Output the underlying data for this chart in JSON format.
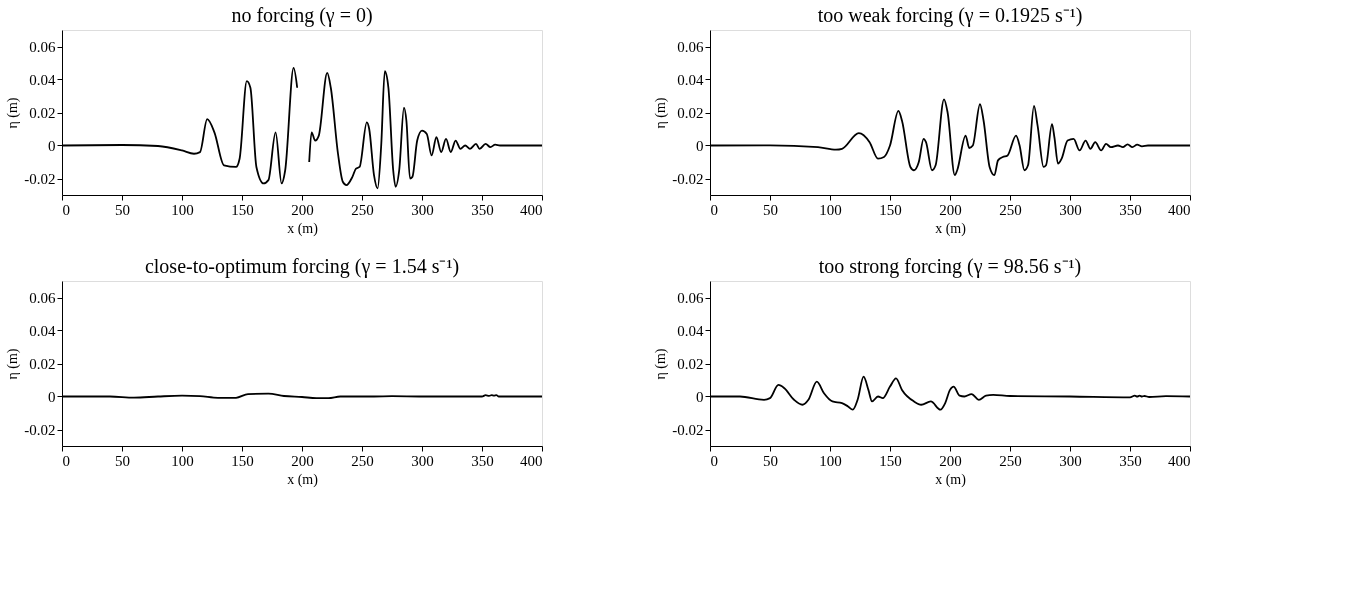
{
  "chart_data": [
    {
      "type": "line",
      "title": "no forcing (γ = 0)",
      "xlabel": "x (m)",
      "ylabel": "η (m)",
      "xlim": [
        0,
        400
      ],
      "xticks": [
        0,
        50,
        100,
        150,
        200,
        250,
        300,
        350,
        400
      ],
      "ylim": [
        -0.03,
        0.07
      ],
      "yticks": [
        -0.02,
        0,
        0.02,
        0.04,
        0.06
      ],
      "grid": false,
      "legend": false,
      "x": [
        0,
        50,
        80,
        100,
        110,
        115,
        121,
        127,
        135,
        145,
        148,
        154,
        157,
        162,
        168,
        172,
        178,
        183,
        186,
        193,
        196,
        201,
        202,
        206,
        208,
        211,
        214,
        221,
        224,
        230,
        234,
        237,
        242,
        245,
        248,
        254,
        256,
        260,
        263,
        266,
        269,
        272,
        276,
        278,
        281,
        285,
        287,
        290,
        292,
        296,
        300,
        304,
        308,
        312,
        316,
        320,
        324,
        328,
        332,
        336,
        340,
        345,
        348,
        353,
        357,
        361,
        365,
        400
      ],
      "series": [
        {
          "color": "#000000",
          "values": [
            0,
            0.0003,
            -0.0003,
            -0.003,
            -0.005,
            -0.004,
            0.016,
            0.008,
            -0.012,
            -0.013,
            -0.008,
            0.039,
            0.035,
            -0.013,
            -0.023,
            -0.021,
            0.008,
            -0.023,
            -0.015,
            0.047,
            0.035,
            null,
            null,
            -0.01,
            0.008,
            0.003,
            0.006,
            0.044,
            0.035,
            -0.005,
            -0.022,
            -0.024,
            -0.019,
            -0.014,
            -0.013,
            0.014,
            0.01,
            -0.018,
            -0.026,
            0,
            0.045,
            0.035,
            -0.015,
            -0.025,
            -0.015,
            0.023,
            0.015,
            -0.02,
            -0.019,
            0.003,
            0.009,
            0.007,
            -0.006,
            0.005,
            -0.004,
            0.004,
            -0.004,
            0.003,
            -0.002,
            0,
            -0.002,
            0.001,
            -0.002,
            0.001,
            -0.001,
            0.0005,
            0,
            0
          ]
        }
      ]
    },
    {
      "type": "line",
      "title": "too weak forcing (γ = 0.1925 s⁻¹)",
      "xlabel": "x (m)",
      "ylabel": "η (m)",
      "xlim": [
        0,
        400
      ],
      "xticks": [
        0,
        50,
        100,
        150,
        200,
        250,
        300,
        350,
        400
      ],
      "ylim": [
        -0.03,
        0.07
      ],
      "yticks": [
        -0.02,
        0,
        0.02,
        0.04,
        0.06
      ],
      "grid": false,
      "legend": false,
      "x": [
        0,
        50,
        90,
        105,
        110,
        124,
        133,
        140,
        145,
        150,
        157,
        160,
        167,
        170,
        174,
        178,
        180,
        185,
        188,
        195,
        198,
        204,
        206,
        213,
        216,
        219,
        225,
        228,
        233,
        237,
        240,
        244,
        248,
        255,
        258,
        262,
        265,
        270,
        273,
        278,
        280,
        285,
        287,
        290,
        293,
        298,
        303,
        308,
        313,
        317,
        321,
        326,
        330,
        334,
        340,
        344,
        348,
        352,
        356,
        360,
        365,
        400
      ],
      "series": [
        {
          "color": "#000000",
          "values": [
            0,
            0.0001,
            -0.001,
            -0.0025,
            -0.002,
            0.0075,
            0.002,
            -0.008,
            -0.007,
            0,
            0.021,
            0.015,
            -0.013,
            -0.015,
            -0.01,
            0.004,
            0.002,
            -0.015,
            -0.012,
            0.028,
            0.02,
            -0.018,
            -0.015,
            0.006,
            -0.0015,
            0,
            0.025,
            0.015,
            -0.013,
            -0.018,
            -0.009,
            -0.007,
            -0.006,
            0.006,
            0,
            -0.015,
            -0.012,
            0.024,
            0.012,
            -0.013,
            -0.012,
            0.013,
            0.005,
            -0.011,
            -0.008,
            0.003,
            0.004,
            -0.003,
            0.003,
            -0.002,
            0.002,
            -0.003,
            0.001,
            -0.001,
            0,
            -0.001,
            0.0007,
            -0.001,
            0.0005,
            -0.0005,
            0,
            0
          ]
        }
      ]
    },
    {
      "type": "line",
      "title": "close-to-optimum forcing (γ = 1.54 s⁻¹)",
      "xlabel": "x (m)",
      "ylabel": "η (m)",
      "xlim": [
        0,
        400
      ],
      "xticks": [
        0,
        50,
        100,
        150,
        200,
        250,
        300,
        350,
        400
      ],
      "ylim": [
        -0.03,
        0.07
      ],
      "yticks": [
        -0.02,
        0,
        0.02,
        0.04,
        0.06
      ],
      "grid": false,
      "legend": false,
      "x": [
        0,
        40,
        60,
        80,
        100,
        115,
        130,
        145,
        155,
        172,
        185,
        200,
        212,
        222,
        232,
        260,
        275,
        300,
        350,
        353,
        356,
        358,
        360,
        362,
        364,
        400
      ],
      "series": [
        {
          "color": "#000000",
          "values": [
            0,
            0,
            -0.0007,
            0,
            0.0005,
            0.0002,
            -0.0008,
            -0.0008,
            0.0015,
            0.0017,
            0.0003,
            -0.0003,
            -0.001,
            -0.001,
            0,
            0,
            0.0002,
            0,
            0,
            0.0008,
            0.0004,
            0.0008,
            0.0005,
            0.0008,
            0,
            0
          ]
        }
      ]
    },
    {
      "type": "line",
      "title": "too strong forcing (γ = 98.56 s⁻¹)",
      "xlabel": "x (m)",
      "ylabel": "η (m)",
      "xlim": [
        0,
        400
      ],
      "xticks": [
        0,
        50,
        100,
        150,
        200,
        250,
        300,
        350,
        400
      ],
      "ylim": [
        -0.03,
        0.07
      ],
      "yticks": [
        -0.02,
        0,
        0.02,
        0.04,
        0.06
      ],
      "grid": false,
      "legend": false,
      "x": [
        0,
        25,
        45,
        50,
        57,
        62,
        70,
        77,
        82,
        89,
        95,
        102,
        110,
        115,
        119,
        123,
        128,
        132,
        135,
        140,
        144,
        150,
        155,
        160,
        170,
        176,
        184,
        192,
        196,
        200,
        203,
        208,
        212,
        218,
        224,
        230,
        236,
        250,
        300,
        350,
        354,
        356,
        358,
        360,
        362,
        366,
        380,
        400
      ],
      "series": [
        {
          "color": "#000000",
          "values": [
            0,
            0,
            -0.002,
            -0.001,
            0.007,
            0.005,
            -0.002,
            -0.005,
            -0.002,
            0.009,
            0.002,
            -0.003,
            -0.004,
            -0.006,
            -0.008,
            -0.002,
            0.012,
            0.004,
            -0.003,
            0,
            -0.001,
            0.006,
            0.011,
            0.004,
            -0.003,
            -0.005,
            -0.003,
            -0.008,
            -0.004,
            0.004,
            0.006,
            0.0005,
            0,
            0.0015,
            -0.002,
            0.0005,
            0.001,
            0.0003,
            0,
            -0.0005,
            0.0005,
            0,
            0.0005,
            0,
            0.0003,
            -0.0003,
            0.0002,
            0
          ]
        }
      ]
    }
  ]
}
